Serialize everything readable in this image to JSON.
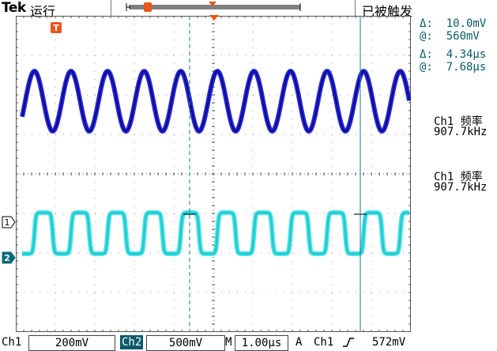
{
  "header": {
    "brand": "Tek",
    "run_state": "运行",
    "trigger_state": "已被触发"
  },
  "markers": {
    "trigger": "T",
    "ch1": "1",
    "ch2": "2"
  },
  "cursor_readout": {
    "delta_v": "Δ:  10.0mV",
    "at_v": "@:  560mV",
    "delta_t": "Δ:  4.34µs",
    "at_t": "@:  7.68µs"
  },
  "measurements": [
    {
      "label": "Ch1 频率",
      "value": "907.7kHz"
    },
    {
      "label": "Ch1 频率",
      "value": "907.7kHz"
    }
  ],
  "bottom": {
    "ch1_label": "Ch1",
    "ch1_scale": "200mV",
    "ch2_label": "Ch2",
    "ch2_scale": "500mV",
    "timebase_label": "M",
    "timebase": "1.00µs",
    "acq_label": "A",
    "trigger_source": "Ch1",
    "trigger_level": "572mV"
  },
  "colors": {
    "ch1": "#1a1ad6",
    "ch2": "#33e3e8",
    "cursor": "#1a7a90",
    "trigger_marker": "#e8561a"
  }
}
